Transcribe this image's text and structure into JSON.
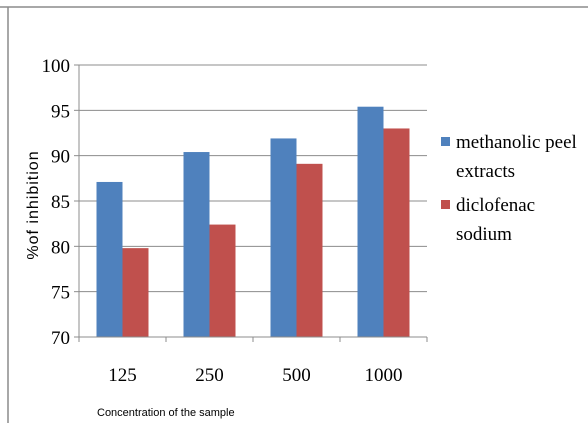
{
  "chart_data": {
    "type": "bar",
    "categories": [
      "125",
      "250",
      "500",
      "1000"
    ],
    "series": [
      {
        "name": "methanolic peel extracts",
        "color": "#4f81bd",
        "values": [
          87.1,
          90.4,
          91.9,
          95.4
        ]
      },
      {
        "name": "diclofenac sodium",
        "color": "#c0504d",
        "values": [
          79.8,
          82.4,
          89.1,
          93.0
        ]
      }
    ],
    "legend_lines": [
      [
        "methanolic peel",
        "extracts"
      ],
      [
        "diclofenac",
        "sodium"
      ]
    ],
    "xlabel": "Concentration of the sample",
    "ylabel": "%of inhibition",
    "ylim": [
      70,
      100
    ],
    "yticks": [
      70,
      75,
      80,
      85,
      90,
      95,
      100
    ],
    "grid": true,
    "legend_position": "right"
  }
}
